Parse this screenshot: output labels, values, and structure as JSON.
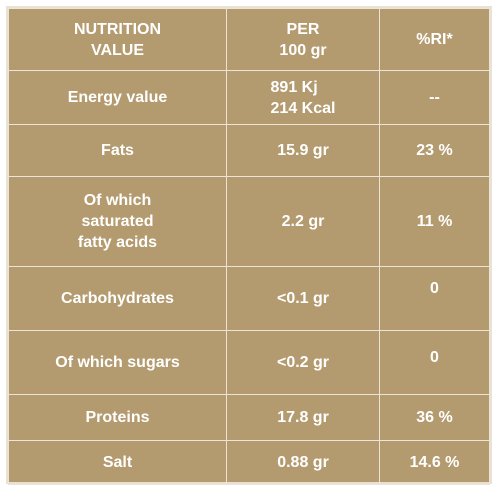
{
  "header": {
    "nutrition": "NUTRITION\nVALUE",
    "per": "PER\n100 gr",
    "ri": "%RI*"
  },
  "rows": [
    {
      "label": "Energy value",
      "per": "891 Kj\n214 Kcal",
      "ri": "--"
    },
    {
      "label": "Fats",
      "per": "15.9 gr",
      "ri": "23 %"
    },
    {
      "label": "Of which\nsaturated\nfatty acids",
      "per": "2.2 gr",
      "ri": "11 %"
    },
    {
      "label": "Carbohydrates",
      "per": "<0.1 gr",
      "ri": "0"
    },
    {
      "label": "Of which sugars",
      "per": "<0.2 gr",
      "ri": "0"
    },
    {
      "label": "Proteins",
      "per": "17.8 gr",
      "ri": "36 %"
    },
    {
      "label": "Salt",
      "per": "0.88 gr",
      "ri": "14.6 %"
    }
  ],
  "colors": {
    "background": "#b49b6f",
    "grid": "#ebe4d7",
    "text": "#ffffff"
  }
}
